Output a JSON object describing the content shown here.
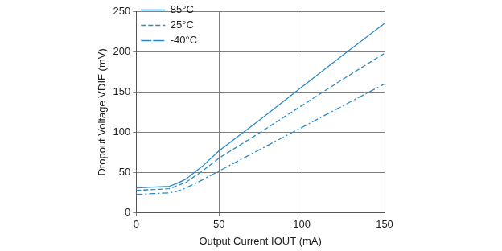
{
  "chart_data": {
    "type": "line",
    "x_label": "Output Current IOUT (mA)",
    "y_label": "Dropout Voltage VDIF (mV)",
    "x": [
      0,
      10,
      20,
      25,
      30,
      40,
      50,
      75,
      100,
      125,
      150
    ],
    "series": [
      {
        "name": "85°C",
        "color": "#2a8bc8",
        "line_style": "solid",
        "values": [
          31,
          32,
          33,
          37,
          42,
          58,
          77,
          116,
          156,
          196,
          235
        ]
      },
      {
        "name": "25°C",
        "color": "#2a8bc8",
        "line_style": "dashed",
        "values": [
          28,
          29,
          30,
          34,
          38,
          52,
          68,
          100,
          133,
          166,
          198
        ]
      },
      {
        "name": "-40°C",
        "color": "#2a8bc8",
        "line_style": "dashdot",
        "values": [
          23,
          24,
          25,
          27,
          31,
          41,
          52,
          79,
          106,
          133,
          160
        ]
      }
    ],
    "xlim": [
      0,
      150
    ],
    "xticks": [
      0,
      50,
      100,
      150
    ],
    "ylim": [
      0,
      250
    ],
    "yticks": [
      0,
      50,
      100,
      150,
      200,
      250
    ],
    "grid": true,
    "legend": "upper left"
  }
}
